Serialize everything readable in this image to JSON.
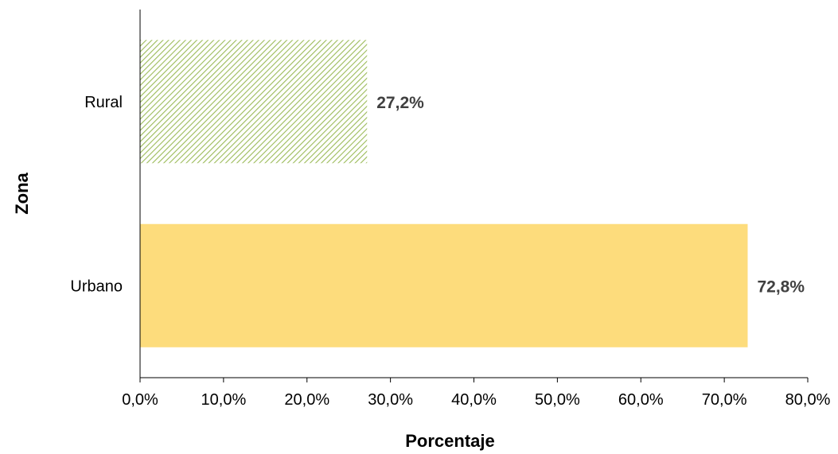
{
  "chart_data": {
    "type": "bar",
    "orientation": "horizontal",
    "categories": [
      "Rural",
      "Urbano"
    ],
    "values": [
      27.2,
      72.8
    ],
    "data_labels": [
      "27,2%",
      "72,8%"
    ],
    "xlabel": "Porcentaje",
    "ylabel": "Zona",
    "xlim": [
      0,
      80
    ],
    "x_ticks": [
      0,
      10,
      20,
      30,
      40,
      50,
      60,
      70,
      80
    ],
    "x_tick_labels": [
      "0,0%",
      "10,0%",
      "20,0%",
      "30,0%",
      "40,0%",
      "50,0%",
      "60,0%",
      "70,0%",
      "80,0%"
    ],
    "grid": false,
    "legend": "none",
    "colors": {
      "Rural": "#9BBB59",
      "Urbano": "#FDDC7C"
    },
    "fill_styles": {
      "Rural": "diagonal-hatch",
      "Urbano": "solid"
    }
  }
}
